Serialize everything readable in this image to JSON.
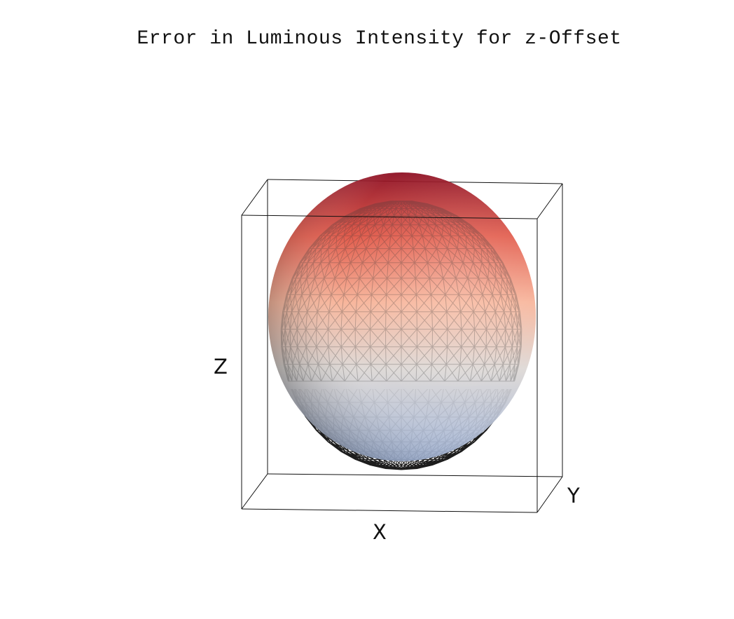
{
  "plot": {
    "title": "Error in Luminous Intensity for z-Offset",
    "xlabel": "X",
    "ylabel": "Y",
    "zlabel": "Z"
  },
  "colors": {
    "top": "#8b0a1e",
    "upper": "#f06a55",
    "middle": "#f6b598",
    "equator": "#d9d7d6",
    "bottom": "#9fb3d8",
    "mesh": "#222222",
    "box": "#111111"
  }
}
